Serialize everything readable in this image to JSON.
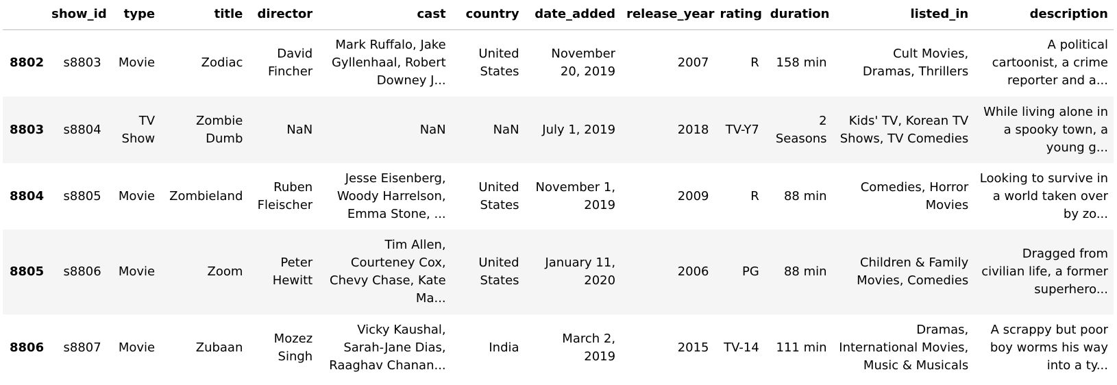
{
  "table": {
    "columns": [
      "show_id",
      "type",
      "title",
      "director",
      "cast",
      "country",
      "date_added",
      "release_year",
      "rating",
      "duration",
      "listed_in",
      "description"
    ],
    "rows": [
      {
        "index": "8802",
        "cells": [
          "s8803",
          "Movie",
          "Zodiac",
          "David Fincher",
          "Mark Ruffalo, Jake Gyllenhaal, Robert Downey J...",
          "United States",
          "November 20, 2019",
          "2007",
          "R",
          "158 min",
          "Cult Movies, Dramas, Thrillers",
          "A political cartoonist, a crime reporter and a..."
        ]
      },
      {
        "index": "8803",
        "cells": [
          "s8804",
          "TV Show",
          "Zombie Dumb",
          "NaN",
          "NaN",
          "NaN",
          "July 1, 2019",
          "2018",
          "TV-Y7",
          "2 Seasons",
          "Kids' TV, Korean TV Shows, TV Comedies",
          "While living alone in a spooky town, a young g..."
        ]
      },
      {
        "index": "8804",
        "cells": [
          "s8805",
          "Movie",
          "Zombieland",
          "Ruben Fleischer",
          "Jesse Eisenberg, Woody Harrelson, Emma Stone, ...",
          "United States",
          "November 1, 2019",
          "2009",
          "R",
          "88 min",
          "Comedies, Horror Movies",
          "Looking to survive in a world taken over by zo..."
        ]
      },
      {
        "index": "8805",
        "cells": [
          "s8806",
          "Movie",
          "Zoom",
          "Peter Hewitt",
          "Tim Allen, Courteney Cox, Chevy Chase, Kate Ma...",
          "United States",
          "January 11, 2020",
          "2006",
          "PG",
          "88 min",
          "Children & Family Movies, Comedies",
          "Dragged from civilian life, a former superhero..."
        ]
      },
      {
        "index": "8806",
        "cells": [
          "s8807",
          "Movie",
          "Zubaan",
          "Mozez Singh",
          "Vicky Kaushal, Sarah-Jane Dias, Raaghav Chanan...",
          "India",
          "March 2, 2019",
          "2015",
          "TV-14",
          "111 min",
          "Dramas, International Movies, Music & Musicals",
          "A scrappy but poor boy worms his way into a ty..."
        ]
      }
    ]
  }
}
